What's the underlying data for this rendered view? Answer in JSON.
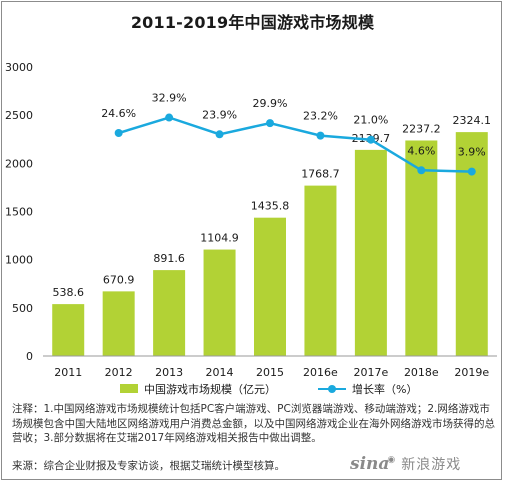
{
  "chart_data": {
    "type": "bar",
    "title": "2011-2019年中国游戏市场规模",
    "categories": [
      "2011",
      "2012",
      "2013",
      "2014",
      "2015",
      "2016e",
      "2017e",
      "2018e",
      "2019e"
    ],
    "series": [
      {
        "name": "中国游戏市场规模（亿元）",
        "type": "bar",
        "color": "#b2d235",
        "values": [
          538.6,
          670.9,
          891.6,
          1104.9,
          1435.8,
          1768.7,
          2139.7,
          2237.2,
          2324.1
        ],
        "labels": [
          "538.6",
          "670.9",
          "891.6",
          "1104.9",
          "1435.8",
          "1768.7",
          "2139.7",
          "2237.2",
          "2324.1"
        ]
      },
      {
        "name": "增长率（%）",
        "type": "line",
        "color": "#1aa9de",
        "values": [
          null,
          24.6,
          32.9,
          23.9,
          29.9,
          23.2,
          21.0,
          4.6,
          3.9
        ],
        "labels": [
          "",
          "24.6%",
          "32.9%",
          "23.9%",
          "29.9%",
          "23.2%",
          "21.0%",
          "4.6%",
          "3.9%"
        ]
      }
    ],
    "yticks": [
      "0",
      "500",
      "1000",
      "1500",
      "2000",
      "2500",
      "3000"
    ],
    "ylim": [
      0,
      3000
    ],
    "y2lim": [
      -95,
      60
    ],
    "legend_position": "bottom",
    "grid": false
  },
  "note": "注释：1.中国网络游戏市场规模统计包括PC客户端游戏、PC浏览器端游戏、移动端游戏；2.网络游戏市场规模包含中国大陆地区网络游戏用户消费总金额，以及中国网络游戏企业在海外网络游戏市场获得的总营收；3.部分数据将在艾瑞2017年网络游戏相关报告中做出调整。",
  "source": "来源：综合企业财报及专家访谈，根据艾瑞统计模型核算。",
  "watermark": {
    "logo": "sina",
    "text": "新浪游戏"
  }
}
